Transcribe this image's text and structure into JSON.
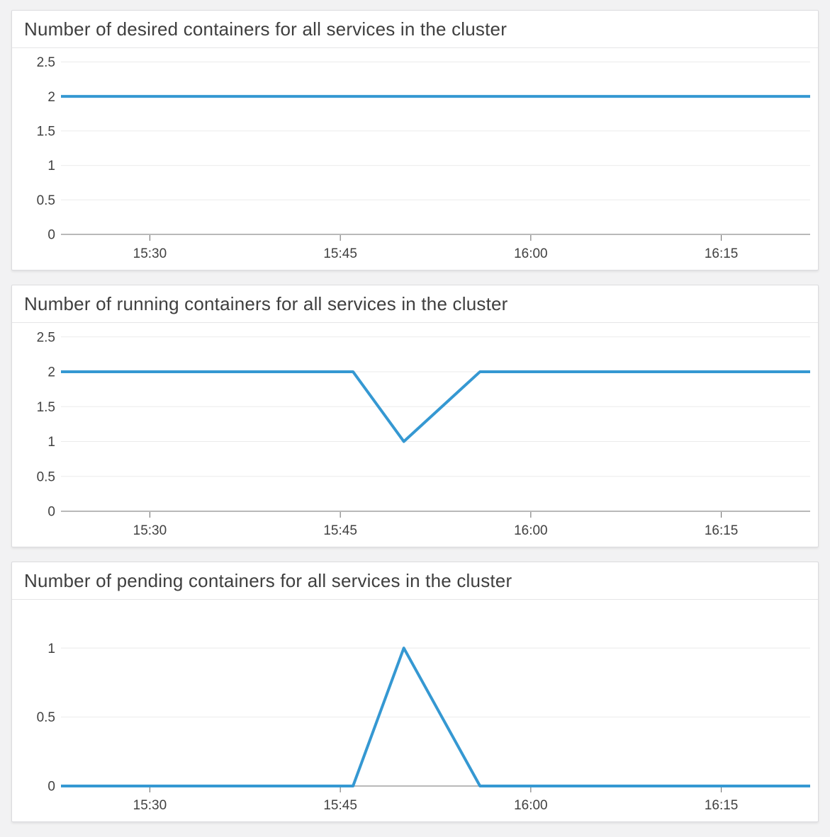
{
  "page": {
    "background_color": "#f2f2f3",
    "card_background": "#ffffff",
    "accent_line_color": "#3598d2"
  },
  "chart_data": [
    {
      "type": "line",
      "title": "Number of desired containers for all services in the cluster",
      "line_color": "#3598d2",
      "grid": true,
      "legend": "none",
      "x_axis": {
        "start": "15:23",
        "end": "16:22",
        "tick_labels": [
          "15:30",
          "15:45",
          "16:00",
          "16:15"
        ]
      },
      "y_axis": {
        "min": 0,
        "max": 2.7,
        "tick_labels": [
          2.5,
          2,
          1.5,
          1,
          0.5,
          0
        ]
      },
      "series": [
        {
          "points": [
            {
              "t": "15:23",
              "v": 2
            },
            {
              "t": "16:22",
              "v": 2
            }
          ]
        }
      ]
    },
    {
      "type": "line",
      "title": "Number of running containers for all services in the cluster",
      "line_color": "#3598d2",
      "grid": true,
      "legend": "none",
      "x_axis": {
        "start": "15:23",
        "end": "16:22",
        "tick_labels": [
          "15:30",
          "15:45",
          "16:00",
          "16:15"
        ]
      },
      "y_axis": {
        "min": 0,
        "max": 2.7,
        "tick_labels": [
          2.5,
          2,
          1.5,
          1,
          0.5,
          0
        ]
      },
      "series": [
        {
          "points": [
            {
              "t": "15:23",
              "v": 2
            },
            {
              "t": "15:46",
              "v": 2
            },
            {
              "t": "15:50",
              "v": 1
            },
            {
              "t": "15:56",
              "v": 2
            },
            {
              "t": "16:22",
              "v": 2
            }
          ]
        }
      ]
    },
    {
      "type": "line",
      "title": "Number of pending containers for all services in the cluster",
      "line_color": "#3598d2",
      "grid": true,
      "legend": "none",
      "x_axis": {
        "start": "15:23",
        "end": "16:22",
        "tick_labels": [
          "15:30",
          "15:45",
          "16:00",
          "16:15"
        ]
      },
      "y_axis": {
        "min": 0,
        "max": 1.35,
        "tick_labels": [
          1,
          0.5,
          0
        ]
      },
      "series": [
        {
          "points": [
            {
              "t": "15:23",
              "v": 0
            },
            {
              "t": "15:46",
              "v": 0
            },
            {
              "t": "15:50",
              "v": 1
            },
            {
              "t": "15:56",
              "v": 0
            },
            {
              "t": "16:22",
              "v": 0
            }
          ]
        }
      ]
    }
  ]
}
